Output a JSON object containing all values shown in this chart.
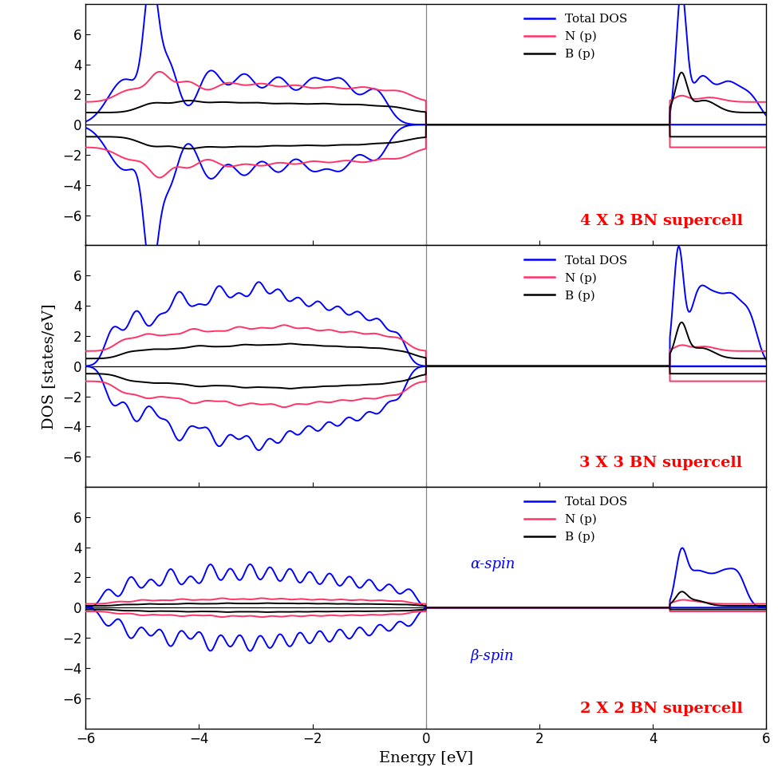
{
  "title": "",
  "xlabel": "Energy [eV]",
  "ylabel": "DOS [states/eV]",
  "xlim": [
    -6,
    6
  ],
  "ylim": [
    -8,
    8
  ],
  "yticks": [
    -6,
    -4,
    -2,
    0,
    2,
    4,
    6
  ],
  "xticks": [
    -6,
    -4,
    -2,
    0,
    2,
    4,
    6
  ],
  "colors": {
    "total": "#0000ff",
    "N": "#ff3366",
    "B": "#000000"
  },
  "legend_entries": [
    "Total DOS",
    "N (p)",
    "B (p)"
  ],
  "supercell_labels": [
    "4 X 3 BN supercell",
    "3 X 3 BN supercell",
    "2 X 2 BN supercell"
  ],
  "spin_labels": [
    "α-spin",
    "β-spin"
  ],
  "label_color": "#ff0000",
  "spin_label_color": "#0000ff",
  "background": "#ffffff",
  "gap_start": 0.0,
  "gap_end": 4.3,
  "lw": 1.4
}
